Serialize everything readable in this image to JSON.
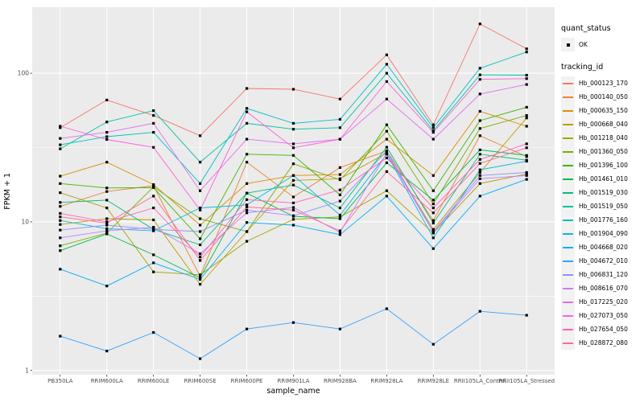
{
  "chart_data": {
    "type": "line",
    "title": "",
    "xlabel": "sample_name",
    "ylabel": "FPKM + 1",
    "y_scale": "log10",
    "y_ticks": [
      1,
      10,
      100
    ],
    "y_minor_gridlines": [
      3.162,
      31.62
    ],
    "ylim": [
      0.95,
      280
    ],
    "grid": "white major+minor gridlines on gray panel",
    "legend_position": "right",
    "point_marker": "black square (quant_status OK)",
    "categories": [
      "PB350LA",
      "RRIM600LA",
      "RRIM600LE",
      "RRIM600SE",
      "RRIM600PE",
      "RRIM901LA",
      "RRIM928BA",
      "RRIM928LA",
      "RRIM928LE",
      "RRII105LA_Control",
      "RRII105LA_Stressed"
    ],
    "series": [
      {
        "name": "Hb_000123_170",
        "color": "#F8766D",
        "values": [
          43,
          66,
          52,
          38,
          79,
          78,
          67,
          133,
          45,
          215,
          146
        ]
      },
      {
        "name": "Hb_000140_050",
        "color": "#EA8331",
        "values": [
          12.7,
          16,
          17.5,
          4.3,
          25.2,
          14.7,
          23.2,
          30,
          10.2,
          38,
          27.5
        ]
      },
      {
        "name": "Hb_000635_150",
        "color": "#D89000",
        "values": [
          20.3,
          25.2,
          17.8,
          9.5,
          18.1,
          20.5,
          20.8,
          36,
          20.5,
          55.5,
          44
        ]
      },
      {
        "name": "Hb_000668_040",
        "color": "#C09B00",
        "values": [
          9.6,
          10.5,
          10.3,
          3.8,
          8.6,
          19,
          19.5,
          29,
          8.9,
          21.5,
          50
        ]
      },
      {
        "name": "Hb_001218_040",
        "color": "#A3A500",
        "values": [
          15.7,
          12.4,
          4.6,
          4.4,
          7.4,
          10.4,
          10.8,
          16.2,
          8.4,
          18.1,
          21
        ]
      },
      {
        "name": "Hb_001360_050",
        "color": "#7CAE00",
        "values": [
          6.9,
          8.4,
          17.2,
          10.5,
          8.6,
          24.6,
          19.2,
          40.7,
          13.2,
          42.5,
          52
        ]
      },
      {
        "name": "Hb_001396_100",
        "color": "#39B600",
        "values": [
          18.1,
          16.9,
          17,
          7.7,
          28.5,
          28,
          15.2,
          45,
          16.2,
          48,
          59
        ]
      },
      {
        "name": "Hb_001461_010",
        "color": "#00BB4E",
        "values": [
          6.4,
          8.3,
          6,
          4.2,
          15.6,
          10.9,
          10.5,
          25,
          14,
          30.5,
          28
        ]
      },
      {
        "name": "Hb_001519_030",
        "color": "#00BF7D",
        "values": [
          13.5,
          14,
          8.9,
          7,
          15.6,
          17.7,
          12.4,
          31.8,
          9.8,
          28.5,
          26
        ]
      },
      {
        "name": "Hb_001519_050",
        "color": "#00C1A3",
        "values": [
          31,
          47,
          56,
          25.2,
          46,
          42,
          43,
          100,
          41,
          97.5,
          97
        ]
      },
      {
        "name": "Hb_001776_160",
        "color": "#00BFC4",
        "values": [
          33,
          37.4,
          40,
          18.1,
          58,
          46,
          49,
          115,
          43,
          108,
          139
        ]
      },
      {
        "name": "Hb_001904_090",
        "color": "#00BAE0",
        "values": [
          10.2,
          9,
          8.7,
          12.4,
          13,
          20.5,
          11.1,
          28.5,
          7.8,
          22.4,
          25.6
        ]
      },
      {
        "name": "Hb_004668_020",
        "color": "#00B0F6",
        "values": [
          4.8,
          3.7,
          5.3,
          4.1,
          9.9,
          9.5,
          8.2,
          14.9,
          6.6,
          14.9,
          19.3
        ]
      },
      {
        "name": "Hb_004672_010",
        "color": "#35A2FF",
        "values": [
          1.7,
          1.35,
          1.8,
          1.2,
          1.9,
          2.1,
          1.9,
          2.6,
          1.5,
          2.5,
          2.35
        ]
      },
      {
        "name": "Hb_006831_120",
        "color": "#9590FF",
        "values": [
          8.8,
          9.5,
          8.9,
          8.6,
          12,
          11,
          13.8,
          30,
          8.6,
          20.5,
          21.5
        ]
      },
      {
        "name": "Hb_008616_070",
        "color": "#C77CFF",
        "values": [
          7.8,
          8.7,
          9.2,
          6.1,
          11.5,
          12.5,
          8.5,
          29,
          8.5,
          19.5,
          20.5
        ]
      },
      {
        "name": "Hb_017225_020",
        "color": "#E76BF3",
        "values": [
          36.4,
          40,
          46,
          16.2,
          36,
          33.5,
          36,
          67,
          36,
          72.5,
          84
        ]
      },
      {
        "name": "Hb_027073_050",
        "color": "#FA62DB",
        "values": [
          44,
          35.8,
          31.7,
          12,
          55,
          31.5,
          36,
          88,
          40,
          91,
          92
        ]
      },
      {
        "name": "Hb_027654_050",
        "color": "#FF62BC",
        "values": [
          11.4,
          10,
          12.4,
          5.8,
          14.1,
          13.4,
          16.4,
          26.9,
          12.4,
          26.3,
          33.5
        ]
      },
      {
        "name": "Hb_028872_080",
        "color": "#FF6A98",
        "values": [
          10.8,
          9.8,
          14.9,
          5.5,
          12.6,
          12,
          8.7,
          21.8,
          11.5,
          24.7,
          31.5
        ]
      }
    ]
  },
  "legend": {
    "quant_status_title": "quant_status",
    "quant_status_items": [
      "OK"
    ],
    "tracking_id_title": "tracking_id"
  },
  "colors": {
    "panel_bg": "#EBEBEB",
    "grid": "#FFFFFF",
    "tick_label": "#4D4D4D",
    "axis_title": "#000000",
    "point": "#000000",
    "legend_key_bg": "#F2F2F2"
  }
}
